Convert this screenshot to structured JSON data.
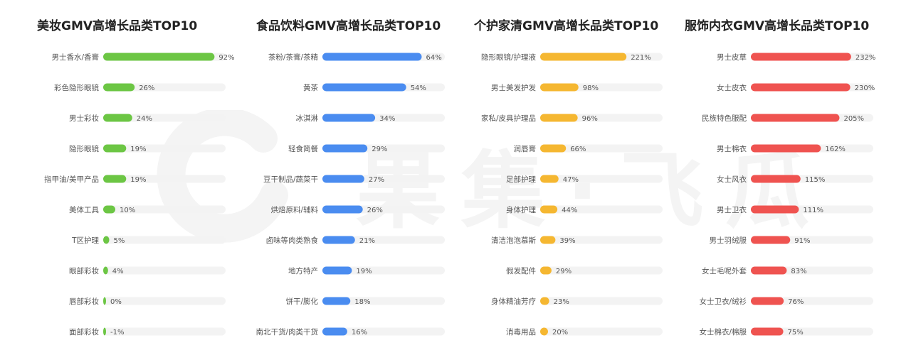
{
  "chart_data": [
    {
      "type": "bar",
      "title": "美妆GMV高增长品类TOP10",
      "color": "#6cc644",
      "track_color": "#f3f3f3",
      "xlim": [
        0,
        100
      ],
      "grid": false,
      "categories": [
        "男士香水/香膏",
        "彩色隐形眼镜",
        "男士彩妆",
        "隐形眼镜",
        "指甲油/美甲产品",
        "美体工具",
        "T区护理",
        "眼部彩妆",
        "唇部彩妆",
        "面部彩妆"
      ],
      "values": [
        92,
        26,
        24,
        19,
        19,
        10,
        5,
        4,
        0,
        -1
      ],
      "labels": [
        "92%",
        "26%",
        "24%",
        "19%",
        "19%",
        "10%",
        "5%",
        "4%",
        "0%",
        "-1%"
      ]
    },
    {
      "type": "bar",
      "title": "食品饮料GMV高增长品类TOP10",
      "color": "#4a8cf0",
      "track_color": "#f3f3f3",
      "xlim": [
        0,
        78
      ],
      "grid": false,
      "categories": [
        "茶粉/茶膏/茶精",
        "黄茶",
        "冰淇淋",
        "轻食简餐",
        "豆干制品/蔬菜干",
        "烘焙原料/辅料",
        "卤味等肉类熟食",
        "地方特产",
        "饼干/膨化",
        "南北干货/肉类干货"
      ],
      "values": [
        64,
        54,
        34,
        29,
        27,
        26,
        21,
        19,
        18,
        16
      ],
      "labels": [
        "64%",
        "54%",
        "34%",
        "29%",
        "27%",
        "26%",
        "21%",
        "19%",
        "18%",
        "16%"
      ]
    },
    {
      "type": "bar",
      "title": "个护家清GMV高增长品类TOP10",
      "color": "#f5b731",
      "track_color": "#f3f3f3",
      "xlim": [
        0,
        310
      ],
      "grid": false,
      "categories": [
        "隐形眼镜/护理液",
        "男士美发护发",
        "家私/皮具护理品",
        "润唇膏",
        "足部护理",
        "身体护理",
        "清洁泡泡慕斯",
        "假发配件",
        "身体精油芳疗",
        "消毒用品"
      ],
      "values": [
        221,
        98,
        96,
        66,
        47,
        44,
        39,
        29,
        23,
        20
      ],
      "labels": [
        "221%",
        "98%",
        "96%",
        "66%",
        "47%",
        "44%",
        "39%",
        "29%",
        "23%",
        "20%"
      ]
    },
    {
      "type": "bar",
      "title": "服饰内衣GMV高增长品类TOP10",
      "color": "#ef5350",
      "track_color": "#f3f3f3",
      "xlim": [
        0,
        280
      ],
      "grid": false,
      "categories": [
        "男士皮草",
        "女士皮衣",
        "民族特色服配",
        "男士棉衣",
        "女士风衣",
        "男士卫衣",
        "男士羽绒服",
        "女士毛呢外套",
        "女士卫衣/绒衫",
        "女士棉衣/棉服"
      ],
      "values": [
        232,
        230,
        205,
        162,
        115,
        111,
        91,
        83,
        76,
        75
      ],
      "labels": [
        "232%",
        "230%",
        "205%",
        "162%",
        "115%",
        "111%",
        "91%",
        "83%",
        "76%",
        "75%"
      ]
    }
  ],
  "watermark": {
    "text": "果集·飞瓜"
  }
}
